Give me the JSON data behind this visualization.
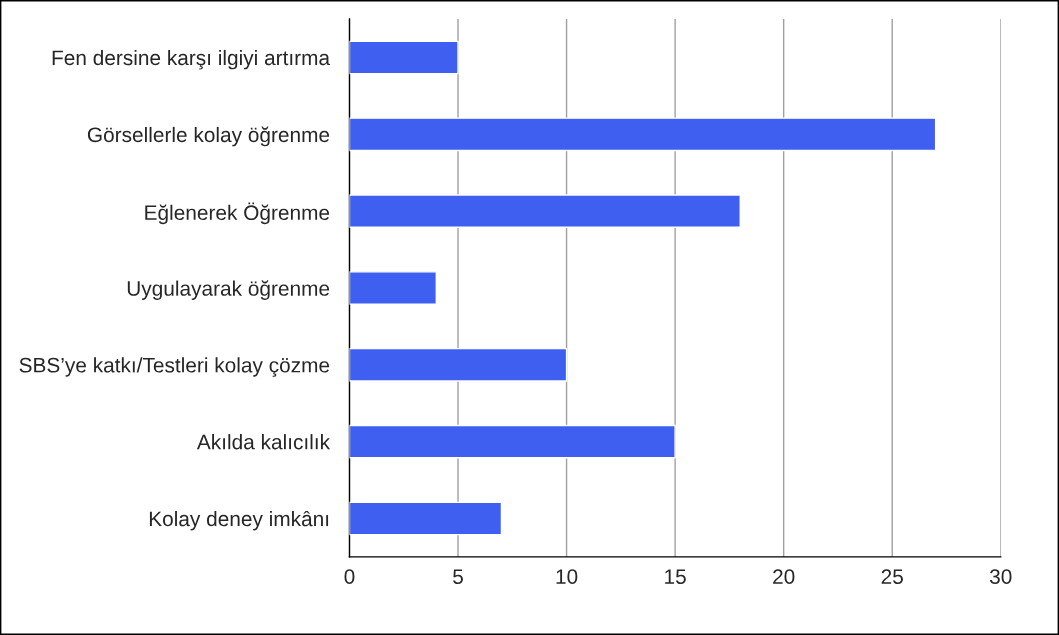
{
  "chart_data": {
    "type": "bar",
    "orientation": "horizontal",
    "categories": [
      "Fen dersine karşı ilgiyi artırma",
      "Görsellerle kolay öğrenme",
      "Eğlenerek Öğrenme",
      "Uygulayarak öğrenme",
      "SBS’ye katkı/Testleri kolay çözme",
      "Akılda kalıcılık",
      "Kolay deney imkânı"
    ],
    "series": [
      {
        "color": "#3f5ff0",
        "values": [
          5,
          27,
          18,
          4,
          10,
          15,
          7
        ]
      }
    ],
    "xlim": [
      0,
      30
    ],
    "xticks": [
      0,
      5,
      10,
      15,
      20,
      25,
      30
    ],
    "grid": "x"
  }
}
